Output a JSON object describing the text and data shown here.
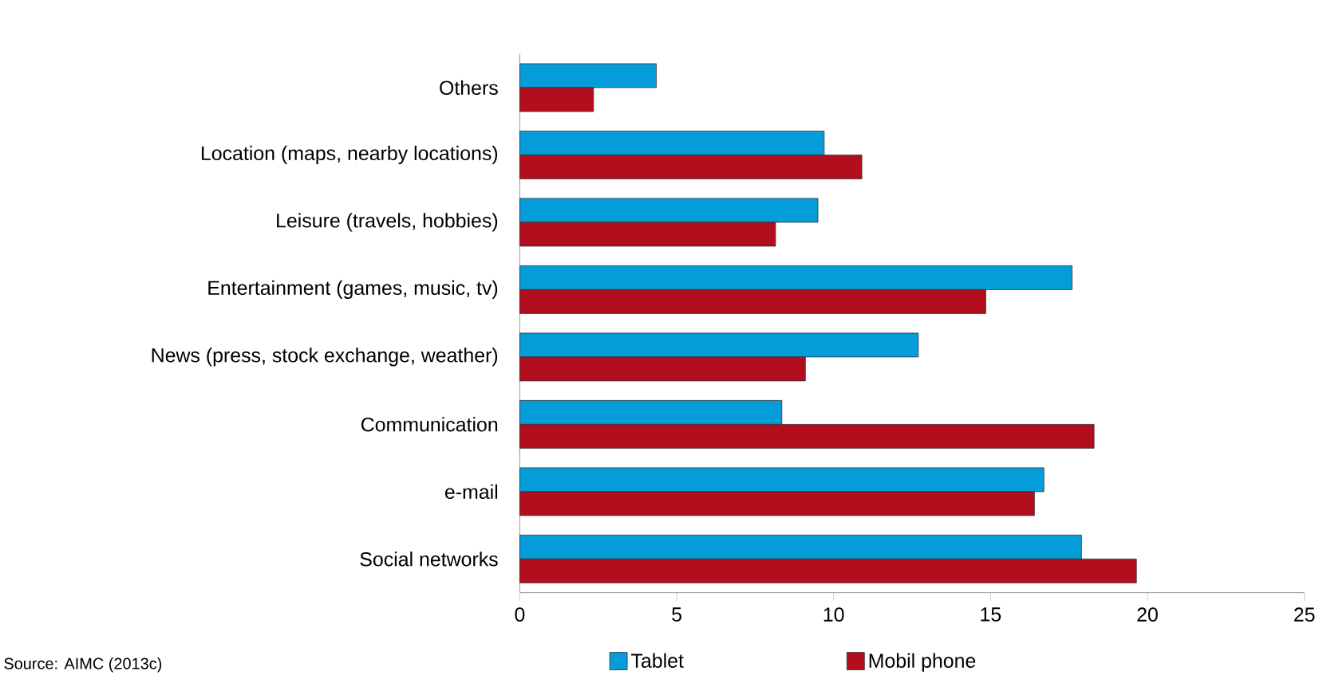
{
  "chart_data": {
    "type": "bar",
    "orientation": "horizontal",
    "categories": [
      "Others",
      "Location (maps, nearby locations)",
      "Leisure (travels, hobbies)",
      "Entertainment (games, music, tv)",
      "News (press, stock exchange, weather)",
      "Communication",
      "e-mail",
      "Social networks"
    ],
    "series": [
      {
        "name": "Tablet",
        "color": "#049dd9",
        "values": [
          4.35,
          9.7,
          9.5,
          17.6,
          12.7,
          8.35,
          16.7,
          17.9
        ]
      },
      {
        "name": "Mobil phone",
        "color": "#b20e1e",
        "values": [
          2.35,
          10.9,
          8.15,
          14.85,
          9.1,
          18.3,
          16.4,
          19.65
        ]
      }
    ],
    "xlim": [
      0,
      25
    ],
    "xticks": [
      0,
      5,
      10,
      15,
      20,
      25
    ],
    "grid": false,
    "legend": "bottom",
    "annotations": [
      "Source: AIMC (2013c)"
    ]
  }
}
